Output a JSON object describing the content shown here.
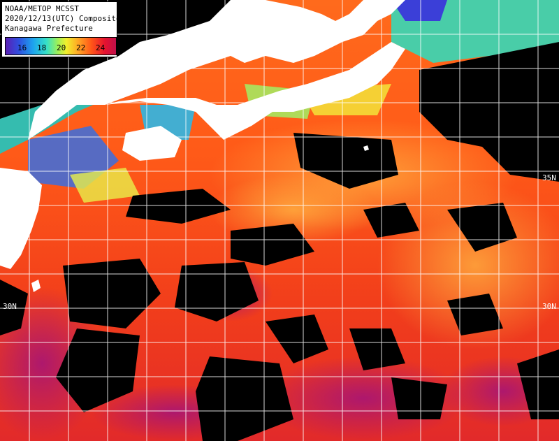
{
  "header": {
    "line1": "NOAA/METOP MCSST",
    "line2": "2020/12/13(UTC) Composite",
    "line3": "Kanagawa Prefecture"
  },
  "legend": {
    "ticks": [
      "16",
      "18",
      "20",
      "22",
      "24"
    ],
    "colors": [
      "#5a1fb5",
      "#2f4fe0",
      "#1da4ee",
      "#35e0c8",
      "#9cf05a",
      "#f1f02c",
      "#ffa524",
      "#ff5418",
      "#e5122f",
      "#c0104a"
    ]
  },
  "map": {
    "lat_labels": {
      "left_30n": "30N",
      "right_30n": "30N",
      "right_35n": "35N"
    },
    "colors": {
      "land": "#ffffff",
      "cloud": "#000000",
      "grid": "#ffffff"
    }
  }
}
